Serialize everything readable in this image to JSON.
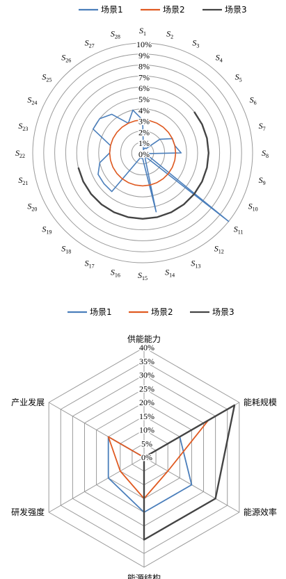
{
  "chart_data": [
    {
      "type": "radar",
      "series": [
        {
          "name": "场景1",
          "color": "#4a7ebb",
          "values": [
            3,
            0.3,
            0.5,
            0.5,
            2,
            3,
            3,
            3.5,
            0.3,
            0.5,
            10,
            0.5,
            0.5,
            5.5,
            0.5,
            0.5,
            0.5,
            4.5,
            4.5,
            4.5,
            4,
            3,
            3,
            5,
            5,
            4.5,
            3,
            4
          ]
        },
        {
          "name": "场景2",
          "color": "#e05a21",
          "values": [
            3,
            3,
            3,
            3,
            3,
            3,
            3,
            3,
            3,
            3,
            3,
            3,
            3,
            3,
            3,
            3,
            3,
            3,
            3,
            3,
            3,
            3,
            3,
            3,
            3,
            3,
            3,
            3
          ]
        },
        {
          "name": "场景3",
          "color": "#444444",
          "values": [
            0,
            0,
            0,
            0,
            6,
            6,
            6,
            6,
            6,
            6,
            6,
            6,
            6,
            6,
            6,
            6,
            6,
            6,
            6,
            6,
            6,
            0,
            0,
            0,
            0,
            0,
            0,
            0
          ]
        }
      ],
      "categories": [
        "S1",
        "S2",
        "S3",
        "S4",
        "S5",
        "S6",
        "S7",
        "S8",
        "S9",
        "S10",
        "S11",
        "S12",
        "S13",
        "S14",
        "S15",
        "S16",
        "S17",
        "S18",
        "S19",
        "S20",
        "S21",
        "S22",
        "S23",
        "S24",
        "S25",
        "S26",
        "S27",
        "S28"
      ],
      "category_parts": [
        [
          "S",
          "1"
        ],
        [
          "S",
          "2"
        ],
        [
          "S",
          "3"
        ],
        [
          "S",
          "4"
        ],
        [
          "S",
          "5"
        ],
        [
          "S",
          "6"
        ],
        [
          "S",
          "7"
        ],
        [
          "S",
          "8"
        ],
        [
          "S",
          "9"
        ],
        [
          "S",
          "10"
        ],
        [
          "S",
          "11"
        ],
        [
          "S",
          "12"
        ],
        [
          "S",
          "13"
        ],
        [
          "S",
          "14"
        ],
        [
          "S",
          "15"
        ],
        [
          "S",
          "16"
        ],
        [
          "S",
          "17"
        ],
        [
          "S",
          "18"
        ],
        [
          "S",
          "19"
        ],
        [
          "S",
          "20"
        ],
        [
          "S",
          "21"
        ],
        [
          "S",
          "22"
        ],
        [
          "S",
          "23"
        ],
        [
          "S",
          "24"
        ],
        [
          "S",
          "25"
        ],
        [
          "S",
          "26"
        ],
        [
          "S",
          "27"
        ],
        [
          "S",
          "28"
        ]
      ],
      "rlim": [
        0,
        10
      ],
      "ticks": [
        "0%",
        "1%",
        "2%",
        "3%",
        "4%",
        "5%",
        "6%",
        "7%",
        "8%",
        "9%",
        "10%"
      ],
      "legend_position": "top",
      "grid": true
    },
    {
      "type": "radar",
      "categories": [
        "供能能力",
        "能耗规模",
        "能源效率",
        "能源结构",
        "研发强度",
        "产业发展"
      ],
      "series": [
        {
          "name": "场景1",
          "color": "#4a7ebb",
          "values": [
            0,
            15,
            20,
            20,
            15,
            15
          ]
        },
        {
          "name": "场景2",
          "color": "#e05a21",
          "values": [
            0,
            27,
            10,
            15,
            10,
            15
          ]
        },
        {
          "name": "场景3",
          "color": "#444444",
          "values": [
            0,
            38,
            30,
            30,
            0,
            0
          ]
        }
      ],
      "rlim": [
        0,
        40
      ],
      "ticks": [
        "0%",
        "5%",
        "10%",
        "15%",
        "20%",
        "25%",
        "30%",
        "35%",
        "40%"
      ],
      "legend_position": "top",
      "grid": true
    }
  ]
}
